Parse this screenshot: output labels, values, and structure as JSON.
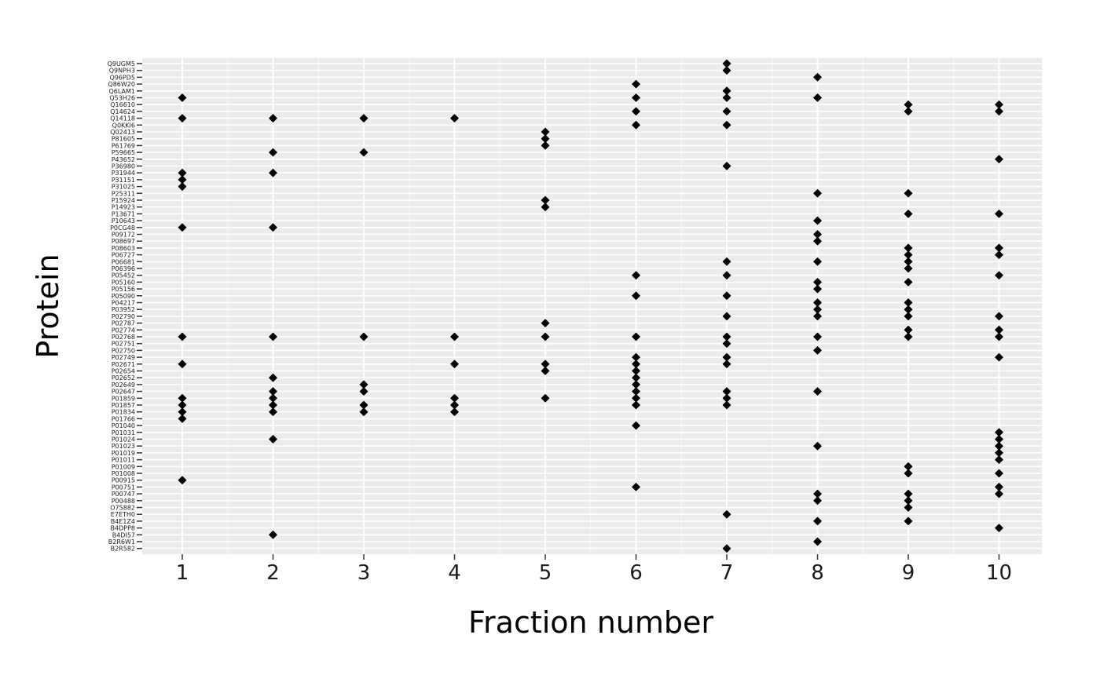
{
  "chart_data": {
    "type": "scatter",
    "title": "",
    "xlabel": "Fraction number",
    "ylabel": "Protein",
    "xlim": [
      0.55,
      10.45
    ],
    "x_ticks": [
      1,
      2,
      3,
      4,
      5,
      6,
      7,
      8,
      9,
      10
    ],
    "marker": "diamond",
    "grid": true,
    "legend": "none",
    "colors": {
      "panel_bg": "#ebebeb",
      "grid": "#ffffff",
      "point": "#000000",
      "text": "#1a1a1a"
    },
    "proteins": [
      "Q9UGM5",
      "Q9NPH3",
      "Q96PD5",
      "Q86W20",
      "Q6LAM1",
      "Q53H26",
      "Q16610",
      "Q14624",
      "Q14118",
      "Q0KKI6",
      "Q02413",
      "P81605",
      "P61769",
      "P59665",
      "P43652",
      "P36980",
      "P31944",
      "P31151",
      "P31025",
      "P25311",
      "P15924",
      "P14923",
      "P13671",
      "P10643",
      "P0CG48",
      "P09172",
      "P08697",
      "P08603",
      "P06727",
      "P06681",
      "P06396",
      "P05452",
      "P05160",
      "P05156",
      "P05090",
      "P04217",
      "P03952",
      "P02790",
      "P02787",
      "P02774",
      "P02768",
      "P02751",
      "P02750",
      "P02749",
      "P02671",
      "P02654",
      "P02652",
      "P02649",
      "P02647",
      "P01859",
      "P01857",
      "P01834",
      "P01766",
      "P01040",
      "P01031",
      "P01024",
      "P01023",
      "P01019",
      "P01011",
      "P01009",
      "P01008",
      "P00915",
      "P00751",
      "P00747",
      "P00488",
      "O75882",
      "E7ETH0",
      "B4E1Z4",
      "B4DPP8",
      "B4DI57",
      "B2R6W1",
      "B2R582"
    ],
    "points": [
      {
        "protein": "Q9UGM5",
        "fractions": [
          7
        ]
      },
      {
        "protein": "Q9NPH3",
        "fractions": [
          7
        ]
      },
      {
        "protein": "Q96PD5",
        "fractions": [
          8
        ]
      },
      {
        "protein": "Q86W20",
        "fractions": [
          6
        ]
      },
      {
        "protein": "Q6LAM1",
        "fractions": [
          7
        ]
      },
      {
        "protein": "Q53H26",
        "fractions": [
          1,
          6,
          7,
          8
        ]
      },
      {
        "protein": "Q16610",
        "fractions": [
          9,
          10
        ]
      },
      {
        "protein": "Q14624",
        "fractions": [
          6,
          7,
          9,
          10
        ]
      },
      {
        "protein": "Q14118",
        "fractions": [
          1,
          2,
          3,
          4
        ]
      },
      {
        "protein": "Q0KKI6",
        "fractions": [
          6,
          7
        ]
      },
      {
        "protein": "Q02413",
        "fractions": [
          5
        ]
      },
      {
        "protein": "P81605",
        "fractions": [
          5
        ]
      },
      {
        "protein": "P61769",
        "fractions": [
          5
        ]
      },
      {
        "protein": "P59665",
        "fractions": [
          2,
          3
        ]
      },
      {
        "protein": "P43652",
        "fractions": [
          10
        ]
      },
      {
        "protein": "P36980",
        "fractions": [
          7
        ]
      },
      {
        "protein": "P31944",
        "fractions": [
          1,
          2
        ]
      },
      {
        "protein": "P31151",
        "fractions": [
          1
        ]
      },
      {
        "protein": "P31025",
        "fractions": [
          1
        ]
      },
      {
        "protein": "P25311",
        "fractions": [
          8,
          9
        ]
      },
      {
        "protein": "P15924",
        "fractions": [
          5
        ]
      },
      {
        "protein": "P14923",
        "fractions": [
          5
        ]
      },
      {
        "protein": "P13671",
        "fractions": [
          9,
          10
        ]
      },
      {
        "protein": "P10643",
        "fractions": [
          8
        ]
      },
      {
        "protein": "P0CG48",
        "fractions": [
          1,
          2
        ]
      },
      {
        "protein": "P09172",
        "fractions": [
          8
        ]
      },
      {
        "protein": "P08697",
        "fractions": [
          8
        ]
      },
      {
        "protein": "P08603",
        "fractions": [
          9,
          10
        ]
      },
      {
        "protein": "P06727",
        "fractions": [
          9,
          10
        ]
      },
      {
        "protein": "P06681",
        "fractions": [
          7,
          8,
          9
        ]
      },
      {
        "protein": "P06396",
        "fractions": [
          9
        ]
      },
      {
        "protein": "P05452",
        "fractions": [
          6,
          7,
          10
        ]
      },
      {
        "protein": "P05160",
        "fractions": [
          8,
          9
        ]
      },
      {
        "protein": "P05156",
        "fractions": [
          8
        ]
      },
      {
        "protein": "P05090",
        "fractions": [
          6,
          7
        ]
      },
      {
        "protein": "P04217",
        "fractions": [
          8,
          9
        ]
      },
      {
        "protein": "P03952",
        "fractions": [
          8,
          9
        ]
      },
      {
        "protein": "P02790",
        "fractions": [
          7,
          8,
          9,
          10
        ]
      },
      {
        "protein": "P02787",
        "fractions": [
          5
        ]
      },
      {
        "protein": "P02774",
        "fractions": [
          9,
          10
        ]
      },
      {
        "protein": "P02768",
        "fractions": [
          1,
          2,
          3,
          4,
          5,
          6,
          7,
          8,
          9,
          10
        ]
      },
      {
        "protein": "P02751",
        "fractions": [
          7
        ]
      },
      {
        "protein": "P02750",
        "fractions": [
          8
        ]
      },
      {
        "protein": "P02749",
        "fractions": [
          6,
          7,
          10
        ]
      },
      {
        "protein": "P02671",
        "fractions": [
          1,
          4,
          5,
          6,
          7
        ]
      },
      {
        "protein": "P02654",
        "fractions": [
          5,
          6
        ]
      },
      {
        "protein": "P02652",
        "fractions": [
          2,
          6
        ]
      },
      {
        "protein": "P02649",
        "fractions": [
          3,
          6
        ]
      },
      {
        "protein": "P02647",
        "fractions": [
          2,
          3,
          6,
          7,
          8
        ]
      },
      {
        "protein": "P01859",
        "fractions": [
          1,
          2,
          4,
          5,
          6,
          7
        ]
      },
      {
        "protein": "P01857",
        "fractions": [
          1,
          2,
          3,
          4,
          6,
          7
        ]
      },
      {
        "protein": "P01834",
        "fractions": [
          1,
          2,
          3,
          4
        ]
      },
      {
        "protein": "P01766",
        "fractions": [
          1
        ]
      },
      {
        "protein": "P01040",
        "fractions": [
          6
        ]
      },
      {
        "protein": "P01031",
        "fractions": [
          10
        ]
      },
      {
        "protein": "P01024",
        "fractions": [
          2,
          10
        ]
      },
      {
        "protein": "P01023",
        "fractions": [
          8,
          10
        ]
      },
      {
        "protein": "P01019",
        "fractions": [
          10
        ]
      },
      {
        "protein": "P01011",
        "fractions": [
          10
        ]
      },
      {
        "protein": "P01009",
        "fractions": [
          9
        ]
      },
      {
        "protein": "P01008",
        "fractions": [
          9,
          10
        ]
      },
      {
        "protein": "P00915",
        "fractions": [
          1
        ]
      },
      {
        "protein": "P00751",
        "fractions": [
          6,
          10
        ]
      },
      {
        "protein": "P00747",
        "fractions": [
          8,
          9,
          10
        ]
      },
      {
        "protein": "P00488",
        "fractions": [
          8,
          9
        ]
      },
      {
        "protein": "O75882",
        "fractions": [
          9
        ]
      },
      {
        "protein": "E7ETH0",
        "fractions": [
          7
        ]
      },
      {
        "protein": "B4E1Z4",
        "fractions": [
          8,
          9
        ]
      },
      {
        "protein": "B4DPP8",
        "fractions": [
          10
        ]
      },
      {
        "protein": "B4DI57",
        "fractions": [
          2
        ]
      },
      {
        "protein": "B2R6W1",
        "fractions": [
          8
        ]
      },
      {
        "protein": "B2R582",
        "fractions": [
          7
        ]
      }
    ]
  }
}
